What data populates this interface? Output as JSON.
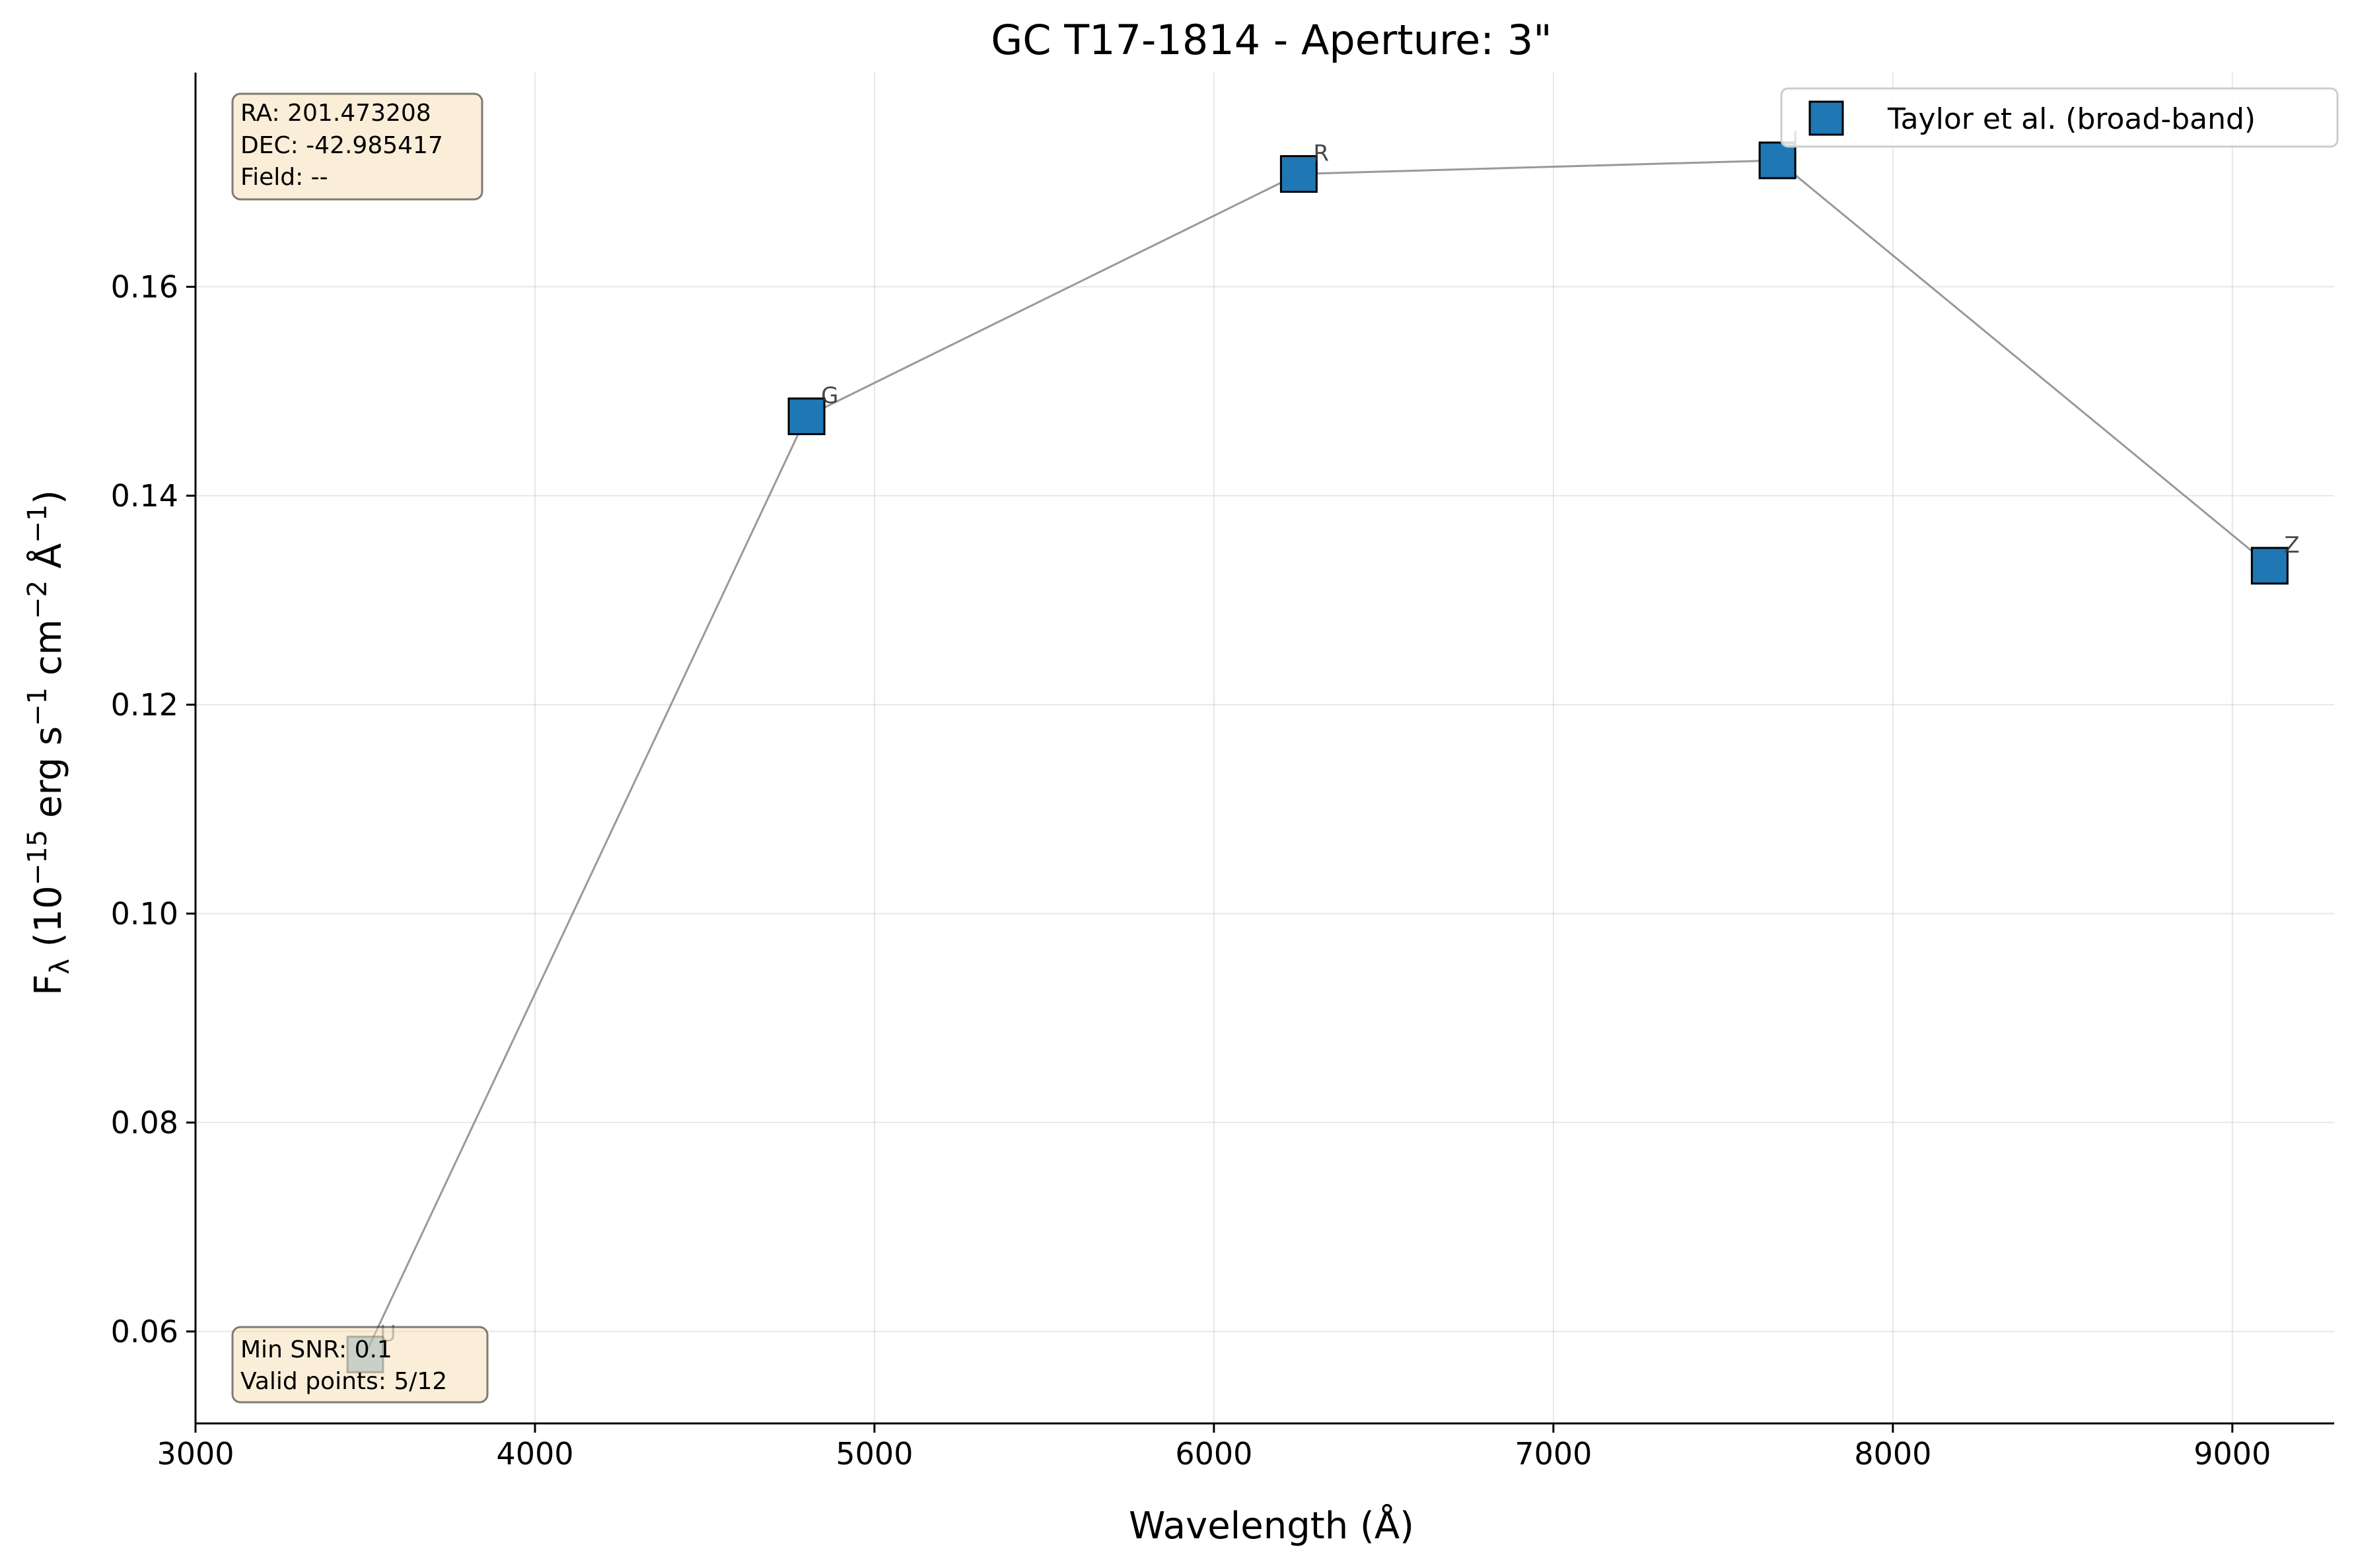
{
  "chart_data": {
    "type": "scatter",
    "title": "GC T17-1814 - Aperture: 3\"",
    "xlabel": "Wavelength (Å)",
    "ylabel": {
      "base": "F",
      "sub": "λ",
      "rest": " (10",
      "exp1": "−15",
      "mid1": " erg s",
      "exp2": "−1",
      "mid2": " cm",
      "exp3": "−2",
      "mid3": " Å",
      "exp4": "−1",
      "end": ")"
    },
    "xlim": [
      3000,
      9300
    ],
    "ylim": [
      0.0512,
      0.1805
    ],
    "xticks": [
      3000,
      4000,
      5000,
      6000,
      7000,
      8000,
      9000
    ],
    "xtick_labels": [
      "3000",
      "4000",
      "5000",
      "6000",
      "7000",
      "8000",
      "9000"
    ],
    "yticks": [
      0.06,
      0.08,
      0.1,
      0.12,
      0.14,
      0.16
    ],
    "ytick_labels": [
      "0.06",
      "0.08",
      "0.10",
      "0.12",
      "0.14",
      "0.16"
    ],
    "grid": true,
    "legend_position": "top-right",
    "series": [
      {
        "name": "Taylor et al. (broad-band)",
        "color": "#1f77b4",
        "points": [
          {
            "label": "U",
            "x": 3500,
            "y": 0.0578,
            "faded": true
          },
          {
            "label": "G",
            "x": 4800,
            "y": 0.1476
          },
          {
            "label": "R",
            "x": 6250,
            "y": 0.1708
          },
          {
            "label": "I",
            "x": 7660,
            "y": 0.1721
          },
          {
            "label": "Z",
            "x": 9110,
            "y": 0.1333
          }
        ]
      }
    ],
    "info_top": [
      "RA: 201.473208",
      "DEC: -42.985417",
      "Field: --"
    ],
    "info_bottom": [
      "Min SNR: 0.1",
      "Valid points: 5/12"
    ]
  }
}
